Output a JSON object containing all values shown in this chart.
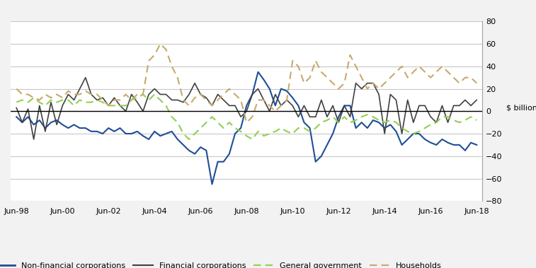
{
  "title": "$ billions",
  "ylim": [
    -80,
    80
  ],
  "yticks": [
    -80,
    -60,
    -40,
    -20,
    0,
    20,
    40,
    60,
    80
  ],
  "xtick_positions": [
    0,
    8,
    16,
    24,
    32,
    40,
    48,
    56,
    64,
    72,
    80
  ],
  "xtick_labels": [
    "Jun-98",
    "Jun-00",
    "Jun-02",
    "Jun-04",
    "Jun-06",
    "Jun-08",
    "Jun-10",
    "Jun-12",
    "Jun-14",
    "Jun-16",
    "Jun-18"
  ],
  "background_color": "#F2F2F2",
  "plot_bg": "#FFFFFF",
  "grid_color": "#C8C8C8",
  "nfc_color": "#1F4E96",
  "fin_color": "#404040",
  "gov_color": "#92D050",
  "hh_color": "#C8A96E",
  "non_financial": [
    -5,
    -10,
    -5,
    -12,
    -8,
    -15,
    -10,
    -8,
    -12,
    -15,
    -12,
    -15,
    -15,
    -18,
    -18,
    -20,
    -15,
    -18,
    -15,
    -20,
    -20,
    -18,
    -22,
    -25,
    -18,
    -22,
    -20,
    -18,
    -25,
    -30,
    -35,
    -38,
    -32,
    -35,
    -65,
    -45,
    -45,
    -38,
    -20,
    -15,
    5,
    15,
    35,
    28,
    20,
    5,
    20,
    18,
    12,
    5,
    -10,
    -15,
    -45,
    -40,
    -30,
    -20,
    -5,
    5,
    5,
    -15,
    -10,
    -15,
    -8,
    -10,
    -15,
    -12,
    -18,
    -30,
    -25,
    -20,
    -20,
    -25,
    -28,
    -30,
    -25,
    -28,
    -30,
    -30,
    -35,
    -28,
    -30
  ],
  "financial": [
    3,
    -10,
    2,
    -25,
    5,
    -18,
    8,
    -12,
    5,
    15,
    10,
    20,
    30,
    15,
    10,
    12,
    5,
    12,
    5,
    0,
    15,
    8,
    0,
    15,
    20,
    15,
    15,
    10,
    10,
    8,
    15,
    25,
    15,
    12,
    5,
    15,
    10,
    5,
    5,
    -5,
    0,
    15,
    20,
    10,
    0,
    15,
    5,
    10,
    5,
    -5,
    5,
    -5,
    -5,
    10,
    -5,
    5,
    -10,
    5,
    -5,
    25,
    20,
    25,
    25,
    15,
    -20,
    15,
    10,
    -20,
    10,
    -10,
    5,
    5,
    -5,
    -10,
    5,
    -10,
    5,
    5,
    10,
    5,
    10
  ],
  "general_govt": [
    8,
    10,
    8,
    12,
    8,
    5,
    10,
    8,
    10,
    10,
    5,
    10,
    8,
    8,
    10,
    8,
    5,
    5,
    5,
    5,
    10,
    12,
    15,
    10,
    15,
    10,
    5,
    -5,
    -10,
    -20,
    -25,
    -20,
    -15,
    -10,
    -5,
    -10,
    -15,
    -10,
    -15,
    -18,
    -22,
    -25,
    -18,
    -22,
    -20,
    -18,
    -15,
    -18,
    -20,
    -15,
    -15,
    -18,
    -15,
    -10,
    -8,
    -5,
    -10,
    -5,
    -10,
    -8,
    -5,
    -3,
    -5,
    -8,
    -10,
    -8,
    -10,
    -15,
    -18,
    -20,
    -18,
    -15,
    -12,
    -10,
    -5,
    -5,
    -8,
    -10,
    -8,
    -5,
    -8
  ],
  "households": [
    20,
    15,
    15,
    12,
    10,
    15,
    12,
    15,
    12,
    18,
    15,
    15,
    18,
    15,
    15,
    10,
    5,
    10,
    10,
    15,
    10,
    15,
    15,
    45,
    50,
    60,
    55,
    40,
    30,
    10,
    5,
    12,
    15,
    10,
    5,
    10,
    15,
    20,
    15,
    10,
    -10,
    -5,
    10,
    10,
    5,
    0,
    5,
    10,
    45,
    40,
    25,
    30,
    45,
    35,
    30,
    25,
    20,
    25,
    50,
    40,
    30,
    20,
    25,
    20,
    25,
    30,
    35,
    40,
    30,
    35,
    40,
    35,
    30,
    35,
    40,
    35,
    30,
    25,
    30,
    30,
    25
  ]
}
